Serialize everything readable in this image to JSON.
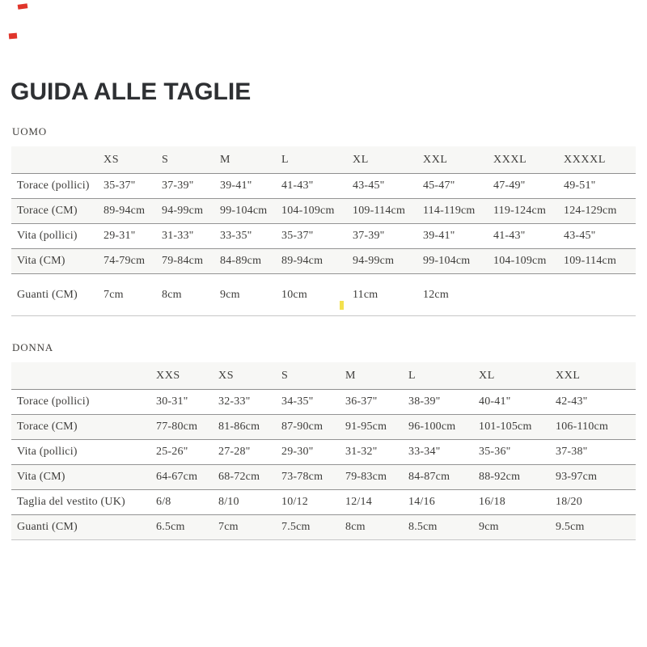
{
  "page": {
    "title": "GUIDA ALLE TAGLIE"
  },
  "sections": [
    {
      "label": "UOMO",
      "columns": [
        "",
        "XS",
        "S",
        "M",
        "L",
        "XL",
        "XXL",
        "XXXL",
        "XXXXL"
      ],
      "rows": [
        {
          "label": "Torace (pollici)",
          "values": [
            "35-37\"",
            "37-39\"",
            "39-41\"",
            "41-43\"",
            "43-45\"",
            "45-47\"",
            "47-49\"",
            "49-51\""
          ]
        },
        {
          "label": "Torace (CM)",
          "values": [
            "89-94cm",
            "94-99cm",
            "99-104cm",
            "104-109cm",
            "109-114cm",
            "114-119cm",
            "119-124cm",
            "124-129cm"
          ]
        },
        {
          "label": "Vita (pollici)",
          "values": [
            "29-31\"",
            "31-33\"",
            "33-35\"",
            "35-37\"",
            "37-39\"",
            "39-41\"",
            "41-43\"",
            "43-45\""
          ]
        },
        {
          "label": "Vita (CM)",
          "values": [
            "74-79cm",
            "79-84cm",
            "84-89cm",
            "89-94cm",
            "94-99cm",
            "99-104cm",
            "104-109cm",
            "109-114cm"
          ]
        },
        {
          "label": "Guanti (CM)",
          "values": [
            "7cm",
            "8cm",
            "9cm",
            "10cm",
            "11cm",
            "12cm",
            "",
            ""
          ]
        }
      ]
    },
    {
      "label": "DONNA",
      "columns": [
        "",
        "XXS",
        "XS",
        "S",
        "M",
        "L",
        "XL",
        "XXL"
      ],
      "rows": [
        {
          "label": "Torace (pollici)",
          "values": [
            "30-31\"",
            "32-33\"",
            "34-35\"",
            "36-37\"",
            "38-39\"",
            "40-41\"",
            "42-43\""
          ]
        },
        {
          "label": "Torace (CM)",
          "values": [
            "77-80cm",
            "81-86cm",
            "87-90cm",
            "91-95cm",
            "96-100cm",
            "101-105cm",
            "106-110cm"
          ]
        },
        {
          "label": "Vita (pollici)",
          "values": [
            "25-26\"",
            "27-28\"",
            "29-30\"",
            "31-32\"",
            "33-34\"",
            "35-36\"",
            "37-38\""
          ]
        },
        {
          "label": "Vita (CM)",
          "values": [
            "64-67cm",
            "68-72cm",
            "73-78cm",
            "79-83cm",
            "84-87cm",
            "88-92cm",
            "93-97cm"
          ]
        },
        {
          "label": "Taglia del vestito (UK)",
          "values": [
            "6/8",
            "8/10",
            "10/12",
            "12/14",
            "14/16",
            "16/18",
            "18/20"
          ]
        },
        {
          "label": "Guanti (CM)",
          "values": [
            "6.5cm",
            "7cm",
            "7.5cm",
            "8cm",
            "8.5cm",
            "9cm",
            "9.5cm"
          ]
        }
      ]
    }
  ],
  "artifacts": {
    "yellow_cursor_color": "#f3e14e",
    "red_mark_color": "#e0352b"
  },
  "colors": {
    "row_alt_background": "#f7f7f5",
    "rule_line": "#949494",
    "body_text": "#3d3c3a",
    "title_text": "#2e3033"
  }
}
